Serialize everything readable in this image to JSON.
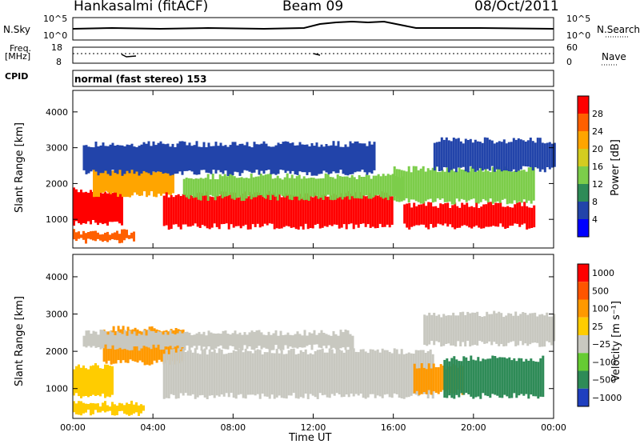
{
  "header": {
    "station": "Hankasalmi (fitACF)",
    "beam": "Beam 09",
    "date": "08/Oct/2011"
  },
  "status_panels": {
    "nsky_label": "N.Sky",
    "nsky_tick_top": "10^5",
    "nsky_tick_bottom": "10^0",
    "nsearch_label": "N.Search",
    "nsearch_tick_top": "10^5",
    "nsearch_tick_bottom": "10^0",
    "freq_label": "Freq.",
    "freq_unit": "[MHz]",
    "freq_tick_top": "18",
    "freq_tick_bottom": "8",
    "nave_label": "Nave",
    "nave_tick_top": "60",
    "nave_tick_bottom": "0",
    "cpid_label": "CPID",
    "cpid_text": "normal (fast stereo) 153"
  },
  "chart_data": [
    {
      "type": "heatmap",
      "name": "power",
      "ylabel": "Slant Range [km]",
      "yticks": [
        "1000",
        "2000",
        "3000",
        "4000"
      ],
      "ylim": [
        200,
        4600
      ],
      "xlabel": "Time UT",
      "xticks": [
        "00:00",
        "04:00",
        "08:00",
        "12:00",
        "16:00",
        "20:00",
        "00:00"
      ],
      "xlim_hours": [
        0,
        24
      ],
      "colorbar_label": "Power [dB]",
      "colorbar_ticks": [
        "4",
        "8",
        "12",
        "16",
        "20",
        "24",
        "28"
      ],
      "colors": [
        "#0000ff",
        "#2244aa",
        "#2e8b57",
        "#7ccd4a",
        "#d4cc20",
        "#ffa500",
        "#ff6000",
        "#ff0000"
      ],
      "bands": [
        {
          "t": [
            0.0,
            2.5
          ],
          "r": [
            900,
            1800
          ],
          "level": 7
        },
        {
          "t": [
            0.0,
            3.0
          ],
          "r": [
            400,
            650
          ],
          "level": 6
        },
        {
          "t": [
            1.0,
            5.0
          ],
          "r": [
            1700,
            2400
          ],
          "level": 5
        },
        {
          "t": [
            4.5,
            16.0
          ],
          "r": [
            800,
            1700
          ],
          "level": 7
        },
        {
          "t": [
            5.5,
            16.5
          ],
          "r": [
            1600,
            2200
          ],
          "level": 3
        },
        {
          "t": [
            0.5,
            15.0
          ],
          "r": [
            2300,
            3100
          ],
          "level": 1
        },
        {
          "t": [
            16.5,
            23.0
          ],
          "r": [
            800,
            1400
          ],
          "level": 7
        },
        {
          "t": [
            16.0,
            23.0
          ],
          "r": [
            1500,
            2400
          ],
          "level": 3
        },
        {
          "t": [
            18.0,
            24.0
          ],
          "r": [
            2400,
            3200
          ],
          "level": 1
        }
      ]
    },
    {
      "type": "heatmap",
      "name": "velocity",
      "ylabel": "Slant Range [km]",
      "yticks": [
        "1000",
        "2000",
        "3000",
        "4000"
      ],
      "ylim": [
        200,
        4600
      ],
      "xlabel": "Time UT",
      "xticks": [
        "00:00",
        "04:00",
        "08:00",
        "12:00",
        "16:00",
        "20:00",
        "00:00"
      ],
      "xlim_hours": [
        0,
        24
      ],
      "colorbar_label": "Velocity [m s⁻¹]",
      "colorbar_ticks": [
        "1000",
        "500",
        "100",
        "25",
        "−25",
        "−100",
        "−500",
        "−1000"
      ],
      "colors": [
        "#1f3fbf",
        "#2e8b57",
        "#66cc33",
        "#c8c8c0",
        "#ffcc00",
        "#ff9900",
        "#ff5500",
        "#ff0000"
      ],
      "bands": [
        {
          "t": [
            0.0,
            2.0
          ],
          "r": [
            800,
            1600
          ],
          "level": 4
        },
        {
          "t": [
            0.0,
            3.5
          ],
          "r": [
            350,
            600
          ],
          "level": 4
        },
        {
          "t": [
            1.5,
            5.5
          ],
          "r": [
            1700,
            2600
          ],
          "level": 5
        },
        {
          "t": [
            4.5,
            18.0
          ],
          "r": [
            800,
            2000
          ],
          "level": 3
        },
        {
          "t": [
            0.5,
            14.0
          ],
          "r": [
            2100,
            2500
          ],
          "level": 3
        },
        {
          "t": [
            17.0,
            19.5
          ],
          "r": [
            900,
            1600
          ],
          "level": 5
        },
        {
          "t": [
            18.5,
            23.5
          ],
          "r": [
            800,
            1800
          ],
          "level": 1
        },
        {
          "t": [
            17.5,
            24.0
          ],
          "r": [
            2200,
            3000
          ],
          "level": 3
        }
      ]
    }
  ]
}
